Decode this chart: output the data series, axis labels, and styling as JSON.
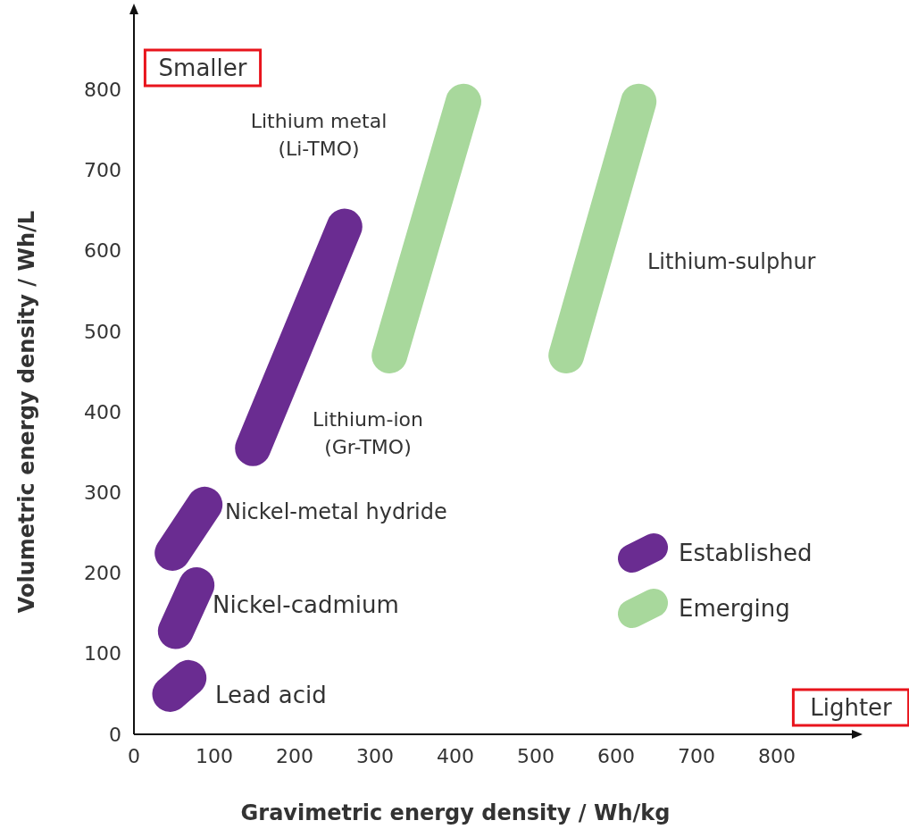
{
  "chart_data": {
    "type": "line",
    "xlabel": "Gravimetric energy density / Wh/kg",
    "ylabel": "Volumetric energy density / Wh/L",
    "xlim": [
      0,
      900
    ],
    "ylim": [
      0,
      900
    ],
    "xticks": [
      0,
      100,
      200,
      300,
      400,
      500,
      600,
      700,
      800
    ],
    "yticks": [
      0,
      100,
      200,
      300,
      400,
      500,
      600,
      700,
      800
    ],
    "legend": "bottom right",
    "series": [
      {
        "name": "Established",
        "color": "#6a2c91",
        "x": [
          45,
          68
        ],
        "values": [
          50,
          70
        ]
      },
      {
        "color": "#6a2c91",
        "x": [
          52,
          78
        ],
        "values": [
          128,
          185
        ]
      },
      {
        "color": "#6a2c91",
        "x": [
          48,
          88
        ],
        "values": [
          225,
          285
        ]
      },
      {
        "color": "#6a2c91",
        "x": [
          148,
          262
        ],
        "values": [
          355,
          630
        ]
      },
      {
        "name": "Emerging",
        "color": "#a8d89c",
        "x": [
          318,
          410
        ],
        "values": [
          470,
          785
        ]
      },
      {
        "color": "#a8d89c",
        "x": [
          538,
          628
        ],
        "values": [
          470,
          785
        ]
      }
    ],
    "annotations": [
      "Smaller",
      "Lighter",
      "Lead acid",
      "Nickel-cadmium",
      "Nickel-metal hydride",
      "Lithium-ion\n(Gr-TMO)",
      "Lithium metal\n(Li-TMO)",
      "Lithium-sulphur"
    ]
  }
}
